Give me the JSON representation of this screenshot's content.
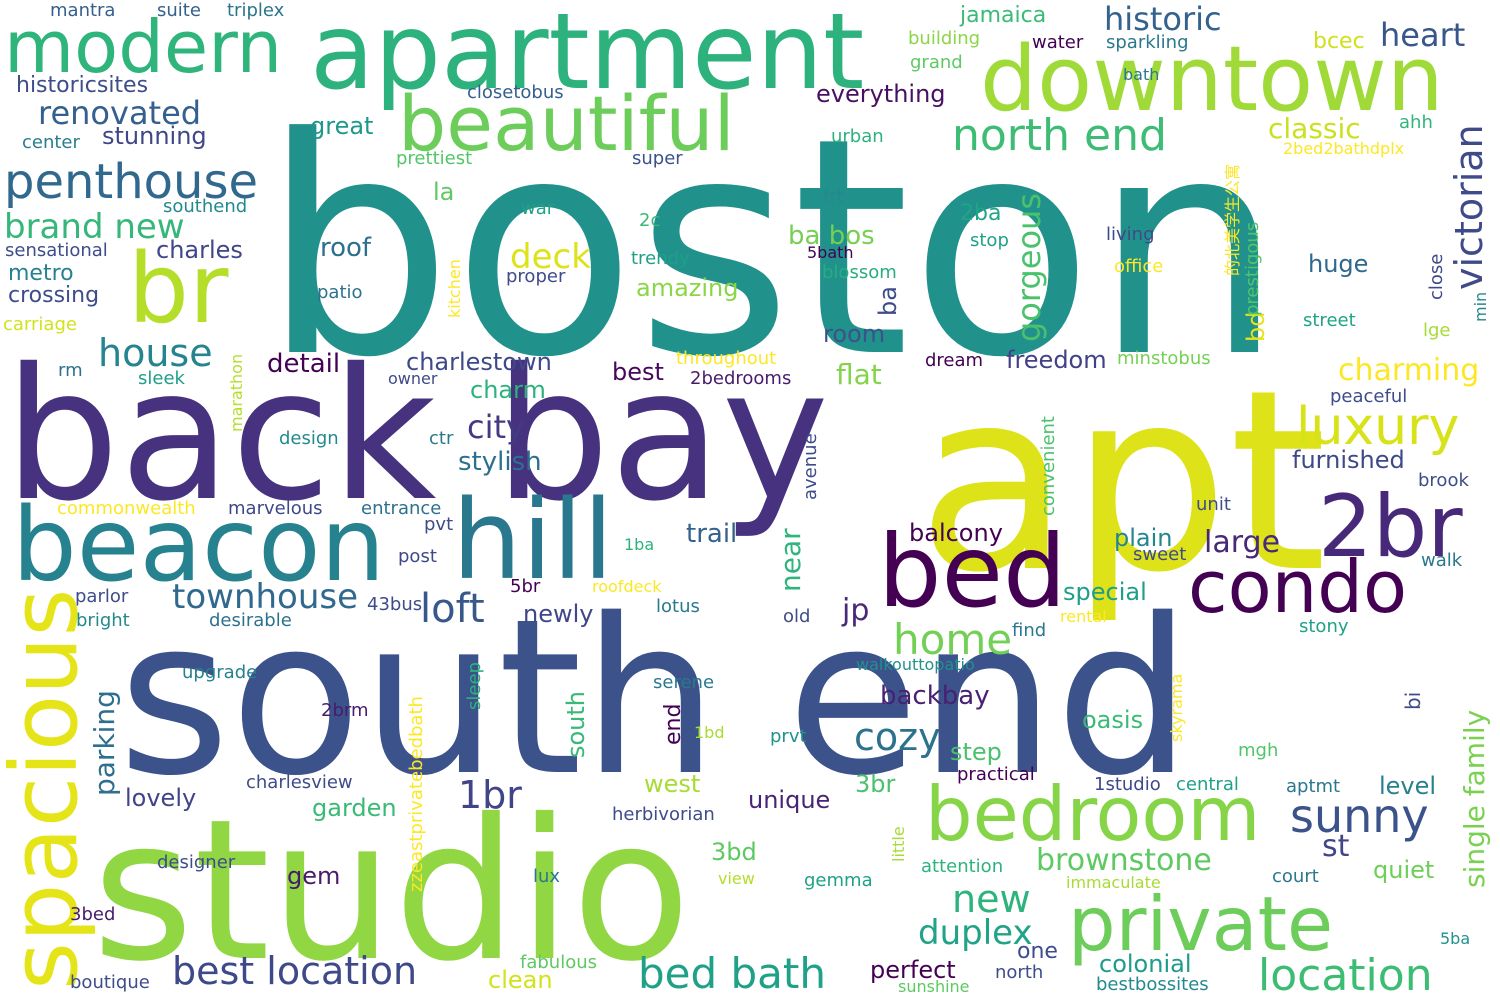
{
  "words": [
    {
      "text": "boston",
      "color": "#21918c"
    },
    {
      "text": "south end",
      "color": "#3b528b"
    },
    {
      "text": "back bay",
      "color": "#46327e"
    },
    {
      "text": "apt",
      "color": "#dde318"
    },
    {
      "text": "studio",
      "color": "#90d743"
    },
    {
      "text": "apartment",
      "color": "#2db27d"
    },
    {
      "text": "downtown",
      "color": "#a0da39"
    },
    {
      "text": "beacon",
      "color": "#26828e"
    },
    {
      "text": "hill",
      "color": "#2a788e"
    },
    {
      "text": "modern",
      "color": "#2fb47c"
    },
    {
      "text": "beautiful",
      "color": "#6ccd5a"
    },
    {
      "text": "br",
      "color": "#b5de2b"
    },
    {
      "text": "bedroom",
      "color": "#86d549"
    },
    {
      "text": "private",
      "color": "#6ccd5a"
    },
    {
      "text": "condo",
      "color": "#440154"
    },
    {
      "text": "bed",
      "color": "#440154"
    },
    {
      "text": "2br",
      "color": "#482878"
    },
    {
      "text": "spacious",
      "color": "#e5e419"
    },
    {
      "text": "penthouse",
      "color": "#31688e"
    },
    {
      "text": "north end",
      "color": "#3dbc74"
    },
    {
      "text": "luxury",
      "color": "#d8e219"
    },
    {
      "text": "victorian",
      "color": "#3e4a89"
    },
    {
      "text": "historic",
      "color": "#33638d"
    },
    {
      "text": "sunny",
      "color": "#3b528b"
    },
    {
      "text": "location",
      "color": "#3dbc74"
    },
    {
      "text": "bed bath",
      "color": "#1fa187"
    },
    {
      "text": "best location",
      "color": "#3e4989"
    },
    {
      "text": "brownstone",
      "color": "#5ec962"
    },
    {
      "text": "renovated",
      "color": "#355f8d"
    },
    {
      "text": "brand new",
      "color": "#35b779"
    },
    {
      "text": "house",
      "color": "#25848e"
    },
    {
      "text": "townhouse",
      "color": "#30698e"
    },
    {
      "text": "loft",
      "color": "#38588c"
    },
    {
      "text": "home",
      "color": "#73d056"
    },
    {
      "text": "new",
      "color": "#2eb37c"
    },
    {
      "text": "cozy",
      "color": "#2c718e"
    },
    {
      "text": "1br",
      "color": "#414487"
    },
    {
      "text": "duplex",
      "color": "#20a386"
    },
    {
      "text": "deck",
      "color": "#dde318"
    },
    {
      "text": "charming",
      "color": "#fde725"
    },
    {
      "text": "gorgeous",
      "color": "#4ac16d"
    },
    {
      "text": "single family",
      "color": "#7ad151"
    },
    {
      "text": "classic",
      "color": "#cae11f"
    },
    {
      "text": "heart",
      "color": "#39568c"
    },
    {
      "text": "city",
      "color": "#443983"
    },
    {
      "text": "stylish",
      "color": "#2d708e"
    },
    {
      "text": "stunning",
      "color": "#3f4788"
    },
    {
      "text": "charles",
      "color": "#404688"
    },
    {
      "text": "charlestown",
      "color": "#3f4889"
    },
    {
      "text": "everything",
      "color": "#471063"
    },
    {
      "text": "great",
      "color": "#1f988b"
    },
    {
      "text": "historicsites",
      "color": "#3e4c8a"
    },
    {
      "text": "crossing",
      "color": "#3e4c8a"
    },
    {
      "text": "metro",
      "color": "#26828e"
    },
    {
      "text": "jamaica",
      "color": "#3aba76"
    },
    {
      "text": "amazing",
      "color": "#8bd646"
    },
    {
      "text": "ba bos",
      "color": "#75d054"
    },
    {
      "text": "roof",
      "color": "#2d708e"
    },
    {
      "text": "detail",
      "color": "#440154"
    },
    {
      "text": "flat",
      "color": "#84d44b"
    },
    {
      "text": "best",
      "color": "#46085c"
    },
    {
      "text": "freedom",
      "color": "#424086"
    },
    {
      "text": "furnished",
      "color": "#3e4989"
    },
    {
      "text": "large",
      "color": "#482878"
    },
    {
      "text": "plain",
      "color": "#25858e"
    },
    {
      "text": "trail",
      "color": "#33638d"
    },
    {
      "text": "balcony",
      "color": "#440154"
    },
    {
      "text": "special",
      "color": "#1f9e89"
    },
    {
      "text": "near",
      "color": "#2fb47c"
    },
    {
      "text": "jp",
      "color": "#482878"
    },
    {
      "text": "newly",
      "color": "#3f4788"
    },
    {
      "text": "parking",
      "color": "#2e6e8e"
    },
    {
      "text": "backbay",
      "color": "#482173"
    },
    {
      "text": "oasis",
      "color": "#3aba76"
    },
    {
      "text": "step",
      "color": "#4ac16d"
    },
    {
      "text": "st",
      "color": "#414487"
    },
    {
      "text": "quiet",
      "color": "#6ece58"
    },
    {
      "text": "level",
      "color": "#27808e"
    },
    {
      "text": "unique",
      "color": "#482475"
    },
    {
      "text": "3br",
      "color": "#4ac16d"
    },
    {
      "text": "west",
      "color": "#a8db34"
    },
    {
      "text": "south",
      "color": "#38b977"
    },
    {
      "text": "end",
      "color": "#440154"
    },
    {
      "text": "garden",
      "color": "#3aba76"
    },
    {
      "text": "lovely",
      "color": "#414487"
    },
    {
      "text": "gem",
      "color": "#481b6d"
    },
    {
      "text": "3bd",
      "color": "#5ec962"
    },
    {
      "text": "colonial",
      "color": "#1e9c89"
    },
    {
      "text": "perfect",
      "color": "#440154"
    },
    {
      "text": "one",
      "color": "#3e4c8a"
    },
    {
      "text": "clean",
      "color": "#d2e21b"
    },
    {
      "text": "charm",
      "color": "#2db27d"
    },
    {
      "text": "bcec",
      "color": "#d0e11c"
    },
    {
      "text": "huge",
      "color": "#31688e"
    },
    {
      "text": "room",
      "color": "#3b528b"
    },
    {
      "text": "2ba",
      "color": "#20a486"
    },
    {
      "text": "bd",
      "color": "#e5e419"
    },
    {
      "text": "la",
      "color": "#5ec962"
    },
    {
      "text": "mantra",
      "color": "#355f8d"
    },
    {
      "text": "suite",
      "color": "#35608d"
    },
    {
      "text": "triplex",
      "color": "#2c738e"
    },
    {
      "text": "building",
      "color": "#8bd646"
    },
    {
      "text": "grand",
      "color": "#5ec962"
    },
    {
      "text": "water",
      "color": "#440154"
    },
    {
      "text": "sparkling",
      "color": "#2a788e"
    },
    {
      "text": "bath",
      "color": "#2a788e"
    },
    {
      "text": "closetobus",
      "color": "#35608d"
    },
    {
      "text": "center",
      "color": "#287d8e"
    },
    {
      "text": "prettiest",
      "color": "#52c569"
    },
    {
      "text": "super",
      "color": "#3b528b"
    },
    {
      "text": "urban",
      "color": "#2db27d"
    },
    {
      "text": "ahh",
      "color": "#31b57b"
    },
    {
      "text": "2bed2bathdplx",
      "color": "#fde725"
    },
    {
      "text": "southend",
      "color": "#23898e"
    },
    {
      "text": "sensational",
      "color": "#3e4c8a"
    },
    {
      "text": "war",
      "color": "#1fa187"
    },
    {
      "text": "2c",
      "color": "#38b977"
    },
    {
      "text": "frt",
      "color": "#23898e"
    },
    {
      "text": "trendy",
      "color": "#1f9e89"
    },
    {
      "text": "proper",
      "color": "#3e4c8a"
    },
    {
      "text": "5bath",
      "color": "#440154"
    },
    {
      "text": "blossom",
      "color": "#27ad81"
    },
    {
      "text": "stop",
      "color": "#1fa187"
    },
    {
      "text": "living",
      "color": "#3e4a89"
    },
    {
      "text": "office",
      "color": "#fde725"
    },
    {
      "text": "prestigous",
      "color": "#52c569"
    },
    {
      "text": "close",
      "color": "#3e4989"
    },
    {
      "text": "min",
      "color": "#23898e"
    },
    {
      "text": "street",
      "color": "#20a486"
    },
    {
      "text": "lge",
      "color": "#a8db34"
    },
    {
      "text": "carriage",
      "color": "#d2e21b"
    },
    {
      "text": "patio",
      "color": "#2c728e"
    },
    {
      "text": "kitchen",
      "color": "#fde725"
    },
    {
      "text": "ba",
      "color": "#3e4c8a"
    },
    {
      "text": "rm",
      "color": "#2c728e"
    },
    {
      "text": "sleek",
      "color": "#1f9e89"
    },
    {
      "text": "owner",
      "color": "#3e4989"
    },
    {
      "text": "marathon",
      "color": "#b5de2b"
    },
    {
      "text": "throughout",
      "color": "#fde725"
    },
    {
      "text": "2bedrooms",
      "color": "#481b6d"
    },
    {
      "text": "dream",
      "color": "#440154"
    },
    {
      "text": "minstobus",
      "color": "#75d054"
    },
    {
      "text": "peaceful",
      "color": "#3e4c8a"
    },
    {
      "text": "design",
      "color": "#23898e"
    },
    {
      "text": "ctr",
      "color": "#2a788e"
    },
    {
      "text": "avenue",
      "color": "#3e4c8a"
    },
    {
      "text": "convenient",
      "color": "#4ac16d"
    },
    {
      "text": "brook",
      "color": "#3e4c8a"
    },
    {
      "text": "commonwealth",
      "color": "#fde725"
    },
    {
      "text": "marvelous",
      "color": "#3e4989"
    },
    {
      "text": "entrance",
      "color": "#2c728e"
    },
    {
      "text": "pvt",
      "color": "#3e4c8a"
    },
    {
      "text": "1ba",
      "color": "#2db27d"
    },
    {
      "text": "unit",
      "color": "#3e4c8a"
    },
    {
      "text": "sweet",
      "color": "#3e4c8a"
    },
    {
      "text": "walk",
      "color": "#2a788e"
    },
    {
      "text": "post",
      "color": "#3e4989"
    },
    {
      "text": "5br",
      "color": "#440154"
    },
    {
      "text": "roofdeck",
      "color": "#fde725"
    },
    {
      "text": "parlor",
      "color": "#3e4c8a"
    },
    {
      "text": "bright",
      "color": "#23898e"
    },
    {
      "text": "43bus",
      "color": "#3e4c8a"
    },
    {
      "text": "desirable",
      "color": "#2c728e"
    },
    {
      "text": "lotus",
      "color": "#2a788e"
    },
    {
      "text": "old",
      "color": "#3e4c8a"
    },
    {
      "text": "rental",
      "color": "#fde725"
    },
    {
      "text": "find",
      "color": "#2a788e"
    },
    {
      "text": "stony",
      "color": "#1fa187"
    },
    {
      "text": "upgrade",
      "color": "#27808e"
    },
    {
      "text": "sleep",
      "color": "#2db27d"
    },
    {
      "text": "zzeastprivatebedbath",
      "color": "#fde725"
    },
    {
      "text": "walkouttopatio",
      "color": "#21918c"
    },
    {
      "text": "serene",
      "color": "#2a788e"
    },
    {
      "text": "skyrama",
      "color": "#fde725"
    },
    {
      "text": "bi",
      "color": "#3e4c8a"
    },
    {
      "text": "2brm",
      "color": "#481b6d"
    },
    {
      "text": "1bd",
      "color": "#a8db34"
    },
    {
      "text": "prvt",
      "color": "#21918c"
    },
    {
      "text": "mgh",
      "color": "#52c569"
    },
    {
      "text": "charlesview",
      "color": "#3e4c8a"
    },
    {
      "text": "practical",
      "color": "#440154"
    },
    {
      "text": "1studio",
      "color": "#3e4989"
    },
    {
      "text": "central",
      "color": "#1fa187"
    },
    {
      "text": "aptmt",
      "color": "#2a788e"
    },
    {
      "text": "herbivorian",
      "color": "#3e4c8a"
    },
    {
      "text": "little",
      "color": "#a8db34"
    },
    {
      "text": "designer",
      "color": "#3e4c8a"
    },
    {
      "text": "attention",
      "color": "#2db27d"
    },
    {
      "text": "view",
      "color": "#b5de2b"
    },
    {
      "text": "gemma",
      "color": "#1fa187"
    },
    {
      "text": "lux",
      "color": "#2a788e"
    },
    {
      "text": "immaculate",
      "color": "#a8db34"
    },
    {
      "text": "court",
      "color": "#2a788e"
    },
    {
      "text": "3bed",
      "color": "#481b6d"
    },
    {
      "text": "fabulous",
      "color": "#5ec962"
    },
    {
      "text": "boutique",
      "color": "#3e4c8a"
    },
    {
      "text": "5ba",
      "color": "#21918c"
    },
    {
      "text": "north",
      "color": "#3e4c8a"
    },
    {
      "text": "sunshine",
      "color": "#5ec962"
    },
    {
      "text": "bestbossites",
      "color": "#23898e"
    },
    {
      "text": "的北美学生公寓",
      "color": "#fde725"
    }
  ]
}
